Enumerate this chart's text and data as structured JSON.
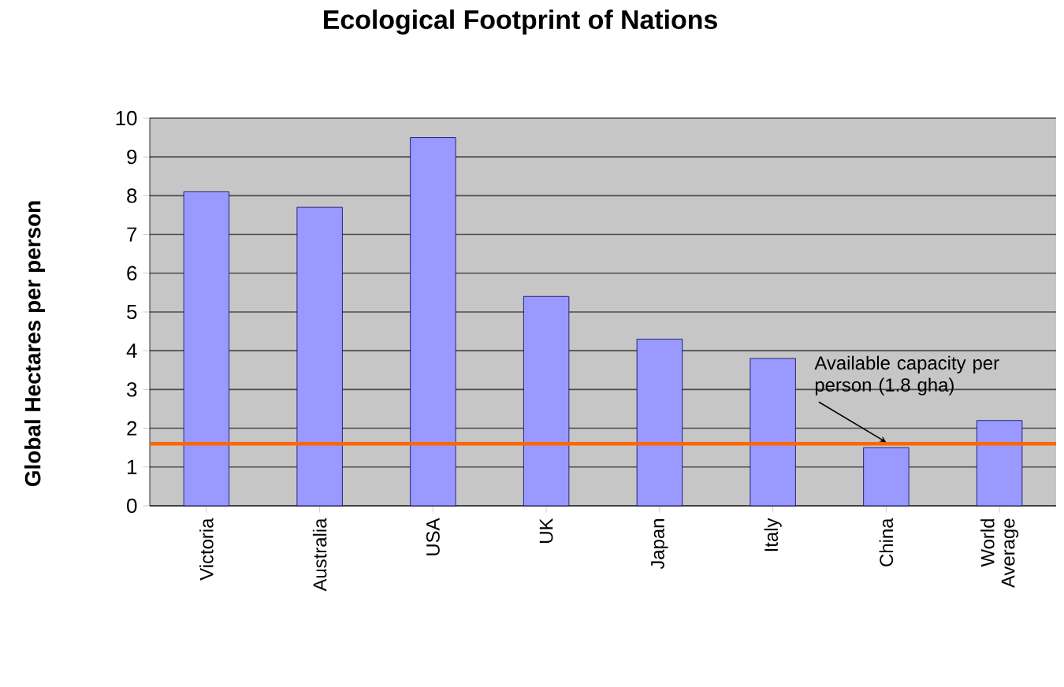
{
  "chart_data": {
    "type": "bar",
    "title": "Ecological Footprint of Nations",
    "ylabel": "Global Hectares per person",
    "categories": [
      "Victoria",
      "Australia",
      "USA",
      "UK",
      "Japan",
      "Italy",
      "China",
      "World Average"
    ],
    "values": [
      8.1,
      7.7,
      9.5,
      5.4,
      4.3,
      3.8,
      1.5,
      2.2
    ],
    "color": "#9999ff",
    "ylim": [
      0,
      10
    ],
    "yticks": [
      0,
      1,
      2,
      3,
      4,
      5,
      6,
      7,
      8,
      9,
      10
    ],
    "grid": "y",
    "ref_lines": [
      {
        "axis": "y",
        "value": 1.6,
        "color": "#ff6600"
      }
    ],
    "annotations": [
      {
        "text": "Available capacity per person (1.8 gha)",
        "x": "China",
        "y": 1.6
      }
    ]
  }
}
